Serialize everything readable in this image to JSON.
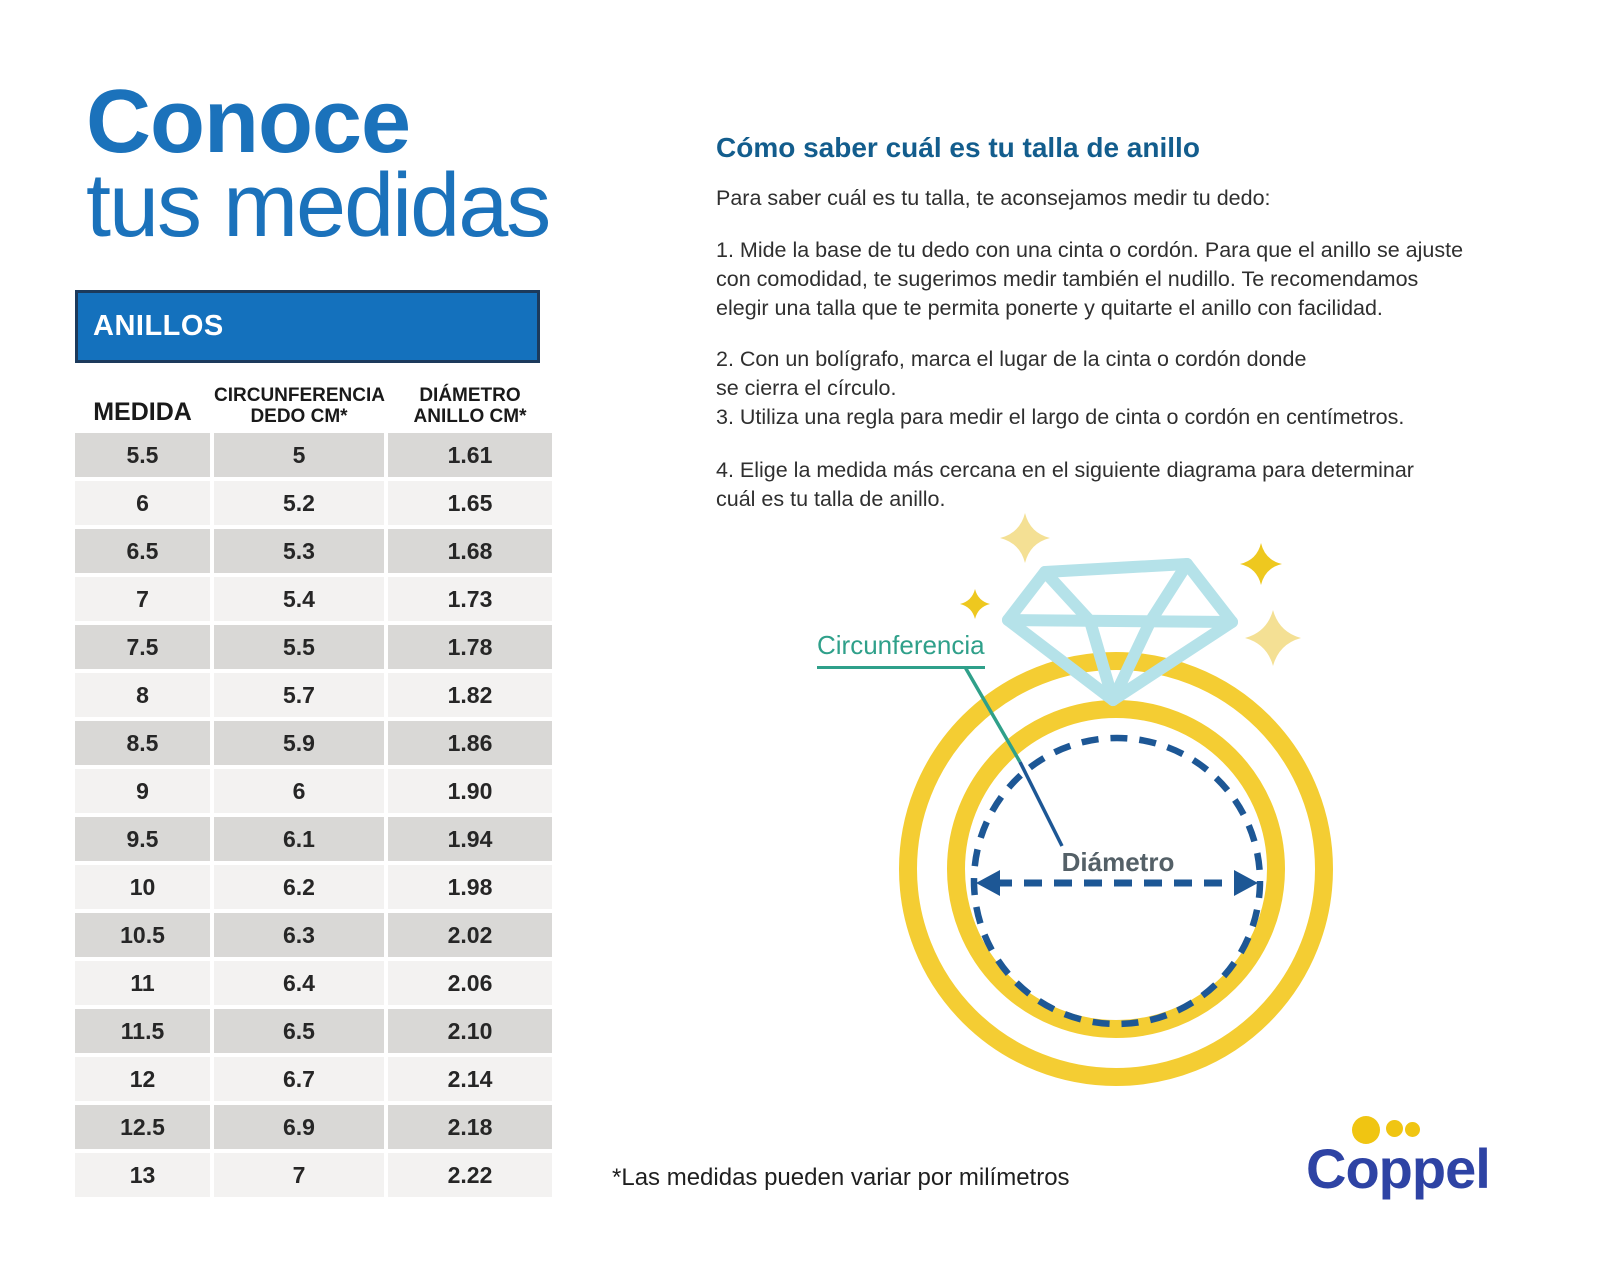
{
  "title": {
    "line1": "Conoce",
    "line2": "tus medidas"
  },
  "table": {
    "title": "ANILLOS",
    "columns": [
      "MEDIDA",
      "CIRCUNFERENCIA\nDEDO CM*",
      "DIÁMETRO\nANILLO CM*"
    ],
    "rows": [
      [
        "5.5",
        "5",
        "1.61"
      ],
      [
        "6",
        "5.2",
        "1.65"
      ],
      [
        "6.5",
        "5.3",
        "1.68"
      ],
      [
        "7",
        "5.4",
        "1.73"
      ],
      [
        "7.5",
        "5.5",
        "1.78"
      ],
      [
        "8",
        "5.7",
        "1.82"
      ],
      [
        "8.5",
        "5.9",
        "1.86"
      ],
      [
        "9",
        "6",
        "1.90"
      ],
      [
        "9.5",
        "6.1",
        "1.94"
      ],
      [
        "10",
        "6.2",
        "1.98"
      ],
      [
        "10.5",
        "6.3",
        "2.02"
      ],
      [
        "11",
        "6.4",
        "2.06"
      ],
      [
        "11.5",
        "6.5",
        "2.10"
      ],
      [
        "12",
        "6.7",
        "2.14"
      ],
      [
        "12.5",
        "6.9",
        "2.18"
      ],
      [
        "13",
        "7",
        "2.22"
      ]
    ]
  },
  "guide": {
    "heading": "Cómo saber cuál es tu talla de anillo",
    "intro": "Para saber cuál es tu talla, te aconsejamos medir tu dedo:",
    "steps": [
      "1. Mide la base de tu dedo con una cinta o cordón. Para que el anillo se ajuste\ncon comodidad, te sugerimos medir también el nudillo. Te recomendamos\nelegir una talla que te permita ponerte y quitarte el anillo con facilidad.",
      "2. Con un bolígrafo, marca el lugar de la cinta o cordón donde\nse cierra el círculo.",
      "3. Utiliza una regla para medir el largo de cinta o cordón en centímetros.",
      "4. Elige la medida más cercana en el siguiente diagrama para determinar\ncuál es tu talla de anillo."
    ]
  },
  "diagram": {
    "circumference_label": "Circunferencia",
    "diameter_label": "Diámetro",
    "icons": [
      "ring-icon",
      "diamond-icon",
      "sparkle-icon"
    ]
  },
  "footnote": "*Las medidas pueden variar por milímetros",
  "logo": {
    "text": "Coppel"
  },
  "colors": {
    "title_blue": "#1b72bb",
    "heading_blue": "#135d8d",
    "table_header_bg": "#1471bd",
    "table_border": "#1c3a5c",
    "row_dark": "#d9d8d6",
    "row_light": "#f3f2f1",
    "ring_yellow": "#f4cd33",
    "diamond_blue": "#b5e2e9",
    "dashed_navy": "#1d5795",
    "teal": "#2fa08a",
    "diameter_label_gray": "#546067",
    "logo_blue": "#2e43a4",
    "logo_yellow": "#f0c512",
    "sparkle_solid": "#eec81f",
    "sparkle_pale": "#f4e094"
  }
}
